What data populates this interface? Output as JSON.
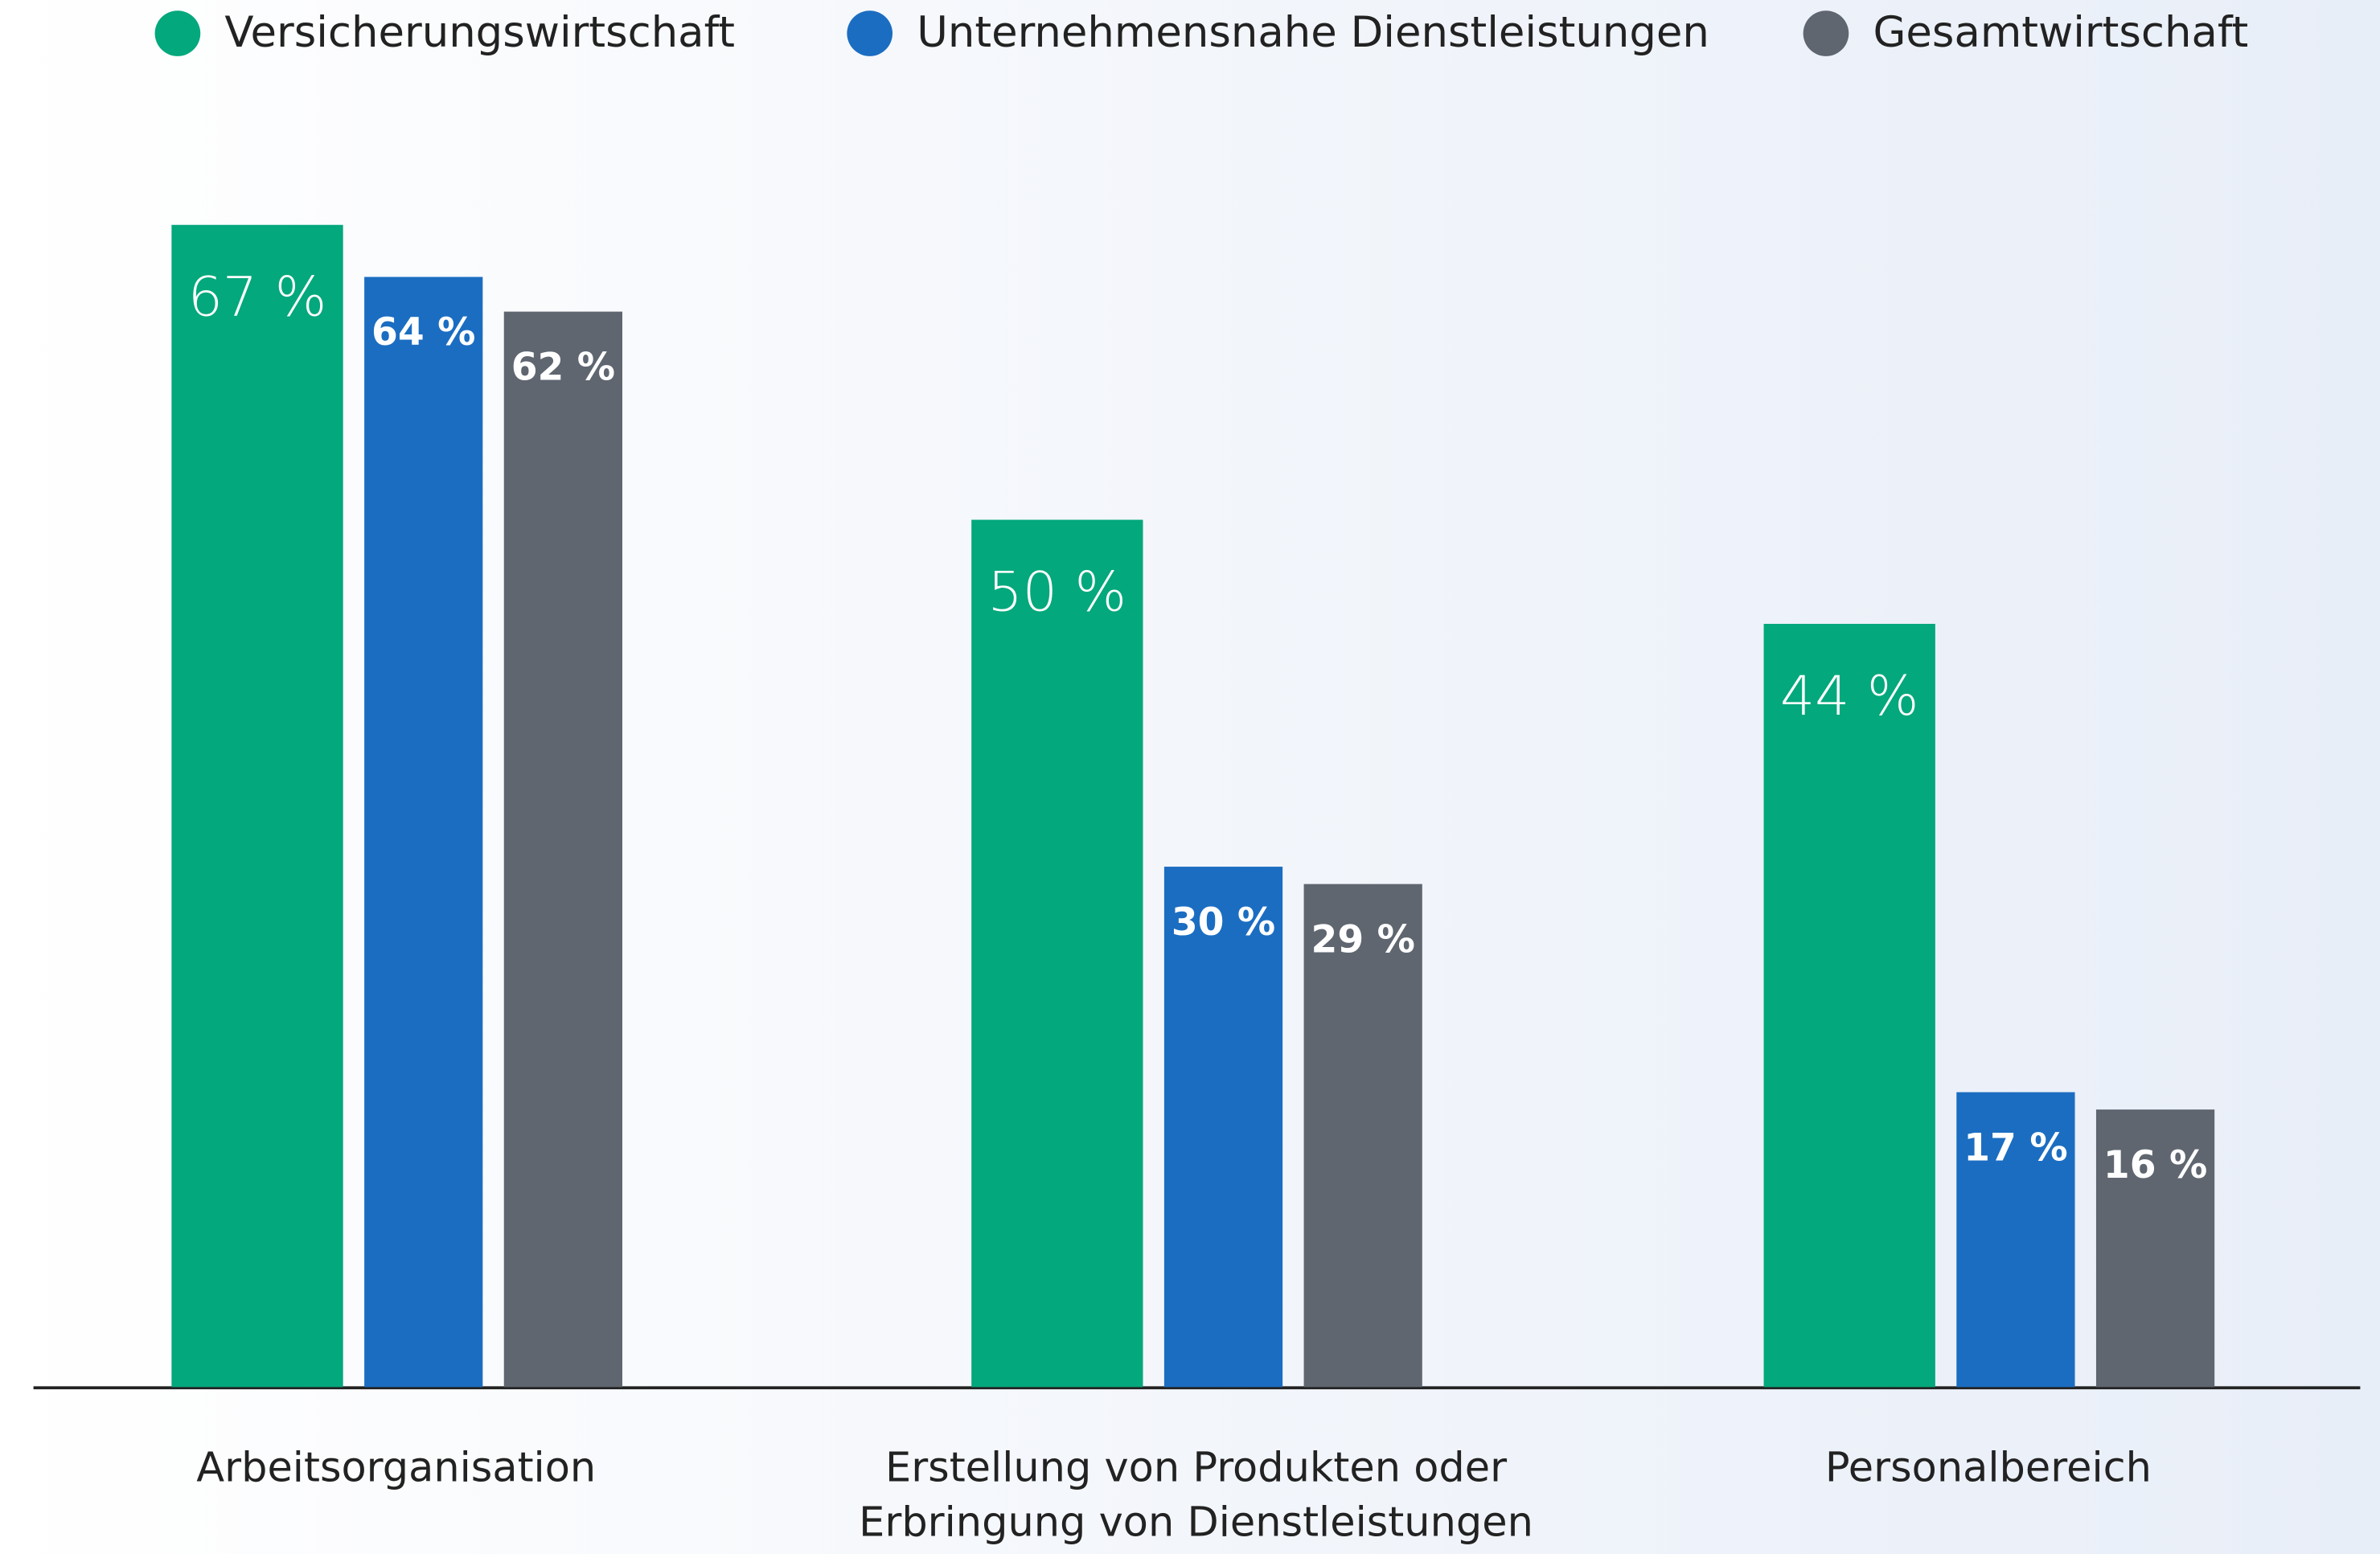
{
  "chart_data": {
    "type": "bar",
    "categories": [
      "Arbeitsorganisation",
      "Erstellung von Produkten oder Erbringung von Dienstleistungen",
      "Personalbereich"
    ],
    "series": [
      {
        "name": "Versicherungswirtschaft",
        "color": "#03a87c",
        "values": [
          67,
          50,
          44
        ],
        "value_labels": [
          "67 %",
          "50 %",
          "44 %"
        ]
      },
      {
        "name": "Unternehmensnahe Dienstleistungen",
        "color": "#1b6dc1",
        "values": [
          64,
          30,
          17
        ],
        "value_labels": [
          "64 %",
          "30 %",
          "17 %"
        ]
      },
      {
        "name": "Gesamtwirtschaft",
        "color": "#5f6670",
        "values": [
          62,
          29,
          16
        ],
        "value_labels": [
          "62 %",
          "29 %",
          "16 %"
        ]
      }
    ],
    "legend": "top"
  }
}
